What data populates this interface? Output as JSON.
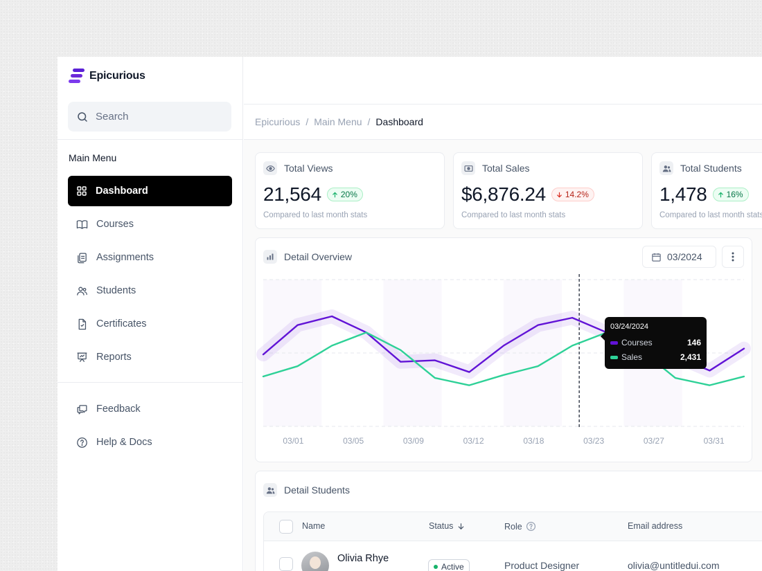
{
  "app": {
    "name": "Epicurious"
  },
  "sidebar": {
    "search_placeholder": "Search",
    "menu_title": "Main Menu",
    "items": [
      {
        "label": "Dashboard",
        "icon": "grid-icon",
        "active": true
      },
      {
        "label": "Courses",
        "icon": "book-icon"
      },
      {
        "label": "Assignments",
        "icon": "clipboard-icon"
      },
      {
        "label": "Students",
        "icon": "users-icon"
      },
      {
        "label": "Certificates",
        "icon": "certificate-icon"
      },
      {
        "label": "Reports",
        "icon": "presentation-icon"
      }
    ],
    "footer_items": [
      {
        "label": "Feedback",
        "icon": "chat-icon"
      },
      {
        "label": "Help & Docs",
        "icon": "help-circle-icon"
      }
    ]
  },
  "breadcrumb": [
    "Epicurious",
    "Main Menu",
    "Dashboard"
  ],
  "stats": [
    {
      "title": "Total Views",
      "value": "21,564",
      "change": "20%",
      "direction": "up",
      "subtitle": "Compared to last month stats",
      "icon": "eye-icon"
    },
    {
      "title": "Total Sales",
      "value": "$6,876.24",
      "change": "14.2%",
      "direction": "down",
      "subtitle": "Compared to last month stats",
      "icon": "cash-icon"
    },
    {
      "title": "Total Students",
      "value": "1,478",
      "change": "16%",
      "direction": "up",
      "subtitle": "Compared to last month stats",
      "icon": "users-icon"
    }
  ],
  "overview": {
    "title": "Detail Overview",
    "date": "03/2024",
    "tooltip": {
      "date": "03/24/2024",
      "rows": [
        {
          "label": "Courses",
          "value": "146"
        },
        {
          "label": "Sales",
          "value": "2,431"
        }
      ]
    }
  },
  "chart_data": {
    "type": "line",
    "x_tick_labels": [
      "03/01",
      "03/05",
      "03/09",
      "03/12",
      "03/18",
      "03/23",
      "03/27",
      "03/31"
    ],
    "series": [
      {
        "name": "Courses",
        "color": "#6113d6",
        "values": [
          0.49,
          0.69,
          0.75,
          0.64,
          0.44,
          0.45,
          0.37,
          0.55,
          0.69,
          0.74,
          0.64,
          0.58,
          0.48,
          0.38,
          0.53
        ]
      },
      {
        "name": "Sales",
        "color": "#2ed197",
        "values": [
          0.34,
          0.41,
          0.55,
          0.64,
          0.52,
          0.33,
          0.28,
          0.35,
          0.41,
          0.55,
          0.64,
          0.52,
          0.33,
          0.28,
          0.34
        ]
      }
    ],
    "highlight_index": 9,
    "ylim": [
      0,
      1
    ],
    "grid": true,
    "legend": "none"
  },
  "students": {
    "title": "Detail Students",
    "columns": [
      "Name",
      "Status",
      "Role",
      "Email address"
    ],
    "rows": [
      {
        "name": "Olivia Rhye",
        "status": "Active",
        "role": "Product Designer",
        "email": "olivia@untitledui.com"
      }
    ]
  }
}
